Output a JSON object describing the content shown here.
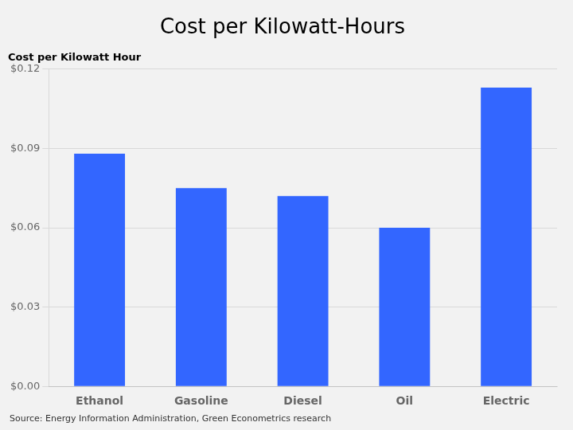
{
  "chart_data": {
    "type": "bar",
    "title": "Cost per Kilowatt-Hours",
    "subtitle": "Cost per Kilowatt Hour",
    "annotations": [
      "Source: Energy Information Administration, Green Econometrics research"
    ],
    "categories": [
      "Ethanol",
      "Gasoline",
      "Diesel",
      "Oil",
      "Electric"
    ],
    "values": [
      0.088,
      0.075,
      0.072,
      0.06,
      0.113
    ],
    "color": "#3366FF",
    "ylim": [
      0,
      0.12
    ],
    "yticks": [
      {
        "value": 0.0,
        "label": "$0.00"
      },
      {
        "value": 0.03,
        "label": "$0.03"
      },
      {
        "value": 0.06,
        "label": "$0.06"
      },
      {
        "value": 0.09,
        "label": "$0.09"
      },
      {
        "value": 0.12,
        "label": "$0.12"
      }
    ],
    "grid": true
  }
}
